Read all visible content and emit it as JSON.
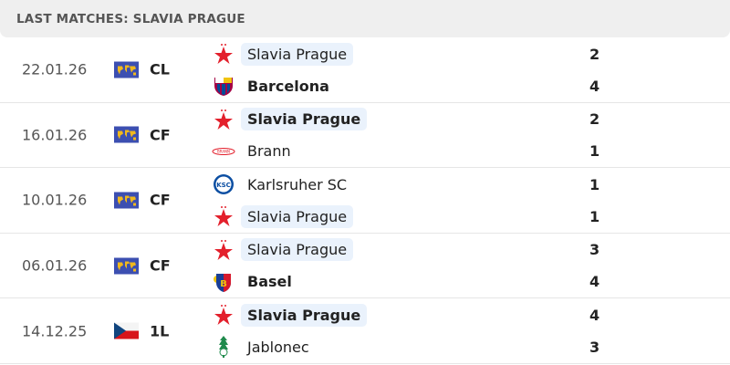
{
  "header": {
    "title": "LAST MATCHES: SLAVIA PRAGUE"
  },
  "colors": {
    "highlight": "#eaf2fc",
    "slavia_red": "#e3202c"
  },
  "matches": [
    {
      "date": "22.01.26",
      "competition": "CL",
      "flag": "world-icon",
      "home": {
        "name": "Slavia Prague",
        "logo": "slavia",
        "score": "2",
        "winner": false,
        "highlight": true
      },
      "away": {
        "name": "Barcelona",
        "logo": "barcelona",
        "score": "4",
        "winner": true,
        "highlight": false
      }
    },
    {
      "date": "16.01.26",
      "competition": "CF",
      "flag": "world-icon",
      "home": {
        "name": "Slavia Prague",
        "logo": "slavia",
        "score": "2",
        "winner": true,
        "highlight": true
      },
      "away": {
        "name": "Brann",
        "logo": "brann",
        "score": "1",
        "winner": false,
        "highlight": false
      }
    },
    {
      "date": "10.01.26",
      "competition": "CF",
      "flag": "world-icon",
      "home": {
        "name": "Karlsruher SC",
        "logo": "ksc",
        "score": "1",
        "winner": false,
        "highlight": false
      },
      "away": {
        "name": "Slavia Prague",
        "logo": "slavia",
        "score": "1",
        "winner": false,
        "highlight": true
      }
    },
    {
      "date": "06.01.26",
      "competition": "CF",
      "flag": "world-icon",
      "home": {
        "name": "Slavia Prague",
        "logo": "slavia",
        "score": "3",
        "winner": false,
        "highlight": true
      },
      "away": {
        "name": "Basel",
        "logo": "basel",
        "score": "4",
        "winner": true,
        "highlight": false
      }
    },
    {
      "date": "14.12.25",
      "competition": "1L",
      "flag": "czech-flag-icon",
      "home": {
        "name": "Slavia Prague",
        "logo": "slavia",
        "score": "4",
        "winner": true,
        "highlight": true
      },
      "away": {
        "name": "Jablonec",
        "logo": "jablonec",
        "score": "3",
        "winner": false,
        "highlight": false
      }
    }
  ]
}
